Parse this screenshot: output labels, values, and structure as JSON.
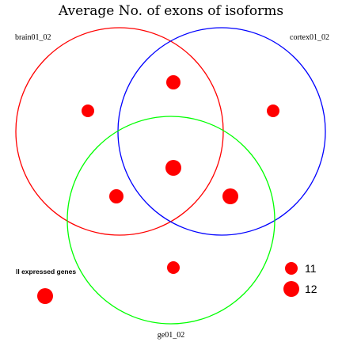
{
  "chart_data": {
    "type": "venn-bubble",
    "title": "Average No. of exons of isoforms",
    "sets": [
      {
        "name": "brain01_02",
        "color": "#ff0000"
      },
      {
        "name": "cortex01_02",
        "color": "#0000ff"
      },
      {
        "name": "ge01_02",
        "color": "#00ff00"
      }
    ],
    "regions": [
      {
        "sets": [
          "brain01_02"
        ],
        "value": 11
      },
      {
        "sets": [
          "cortex01_02"
        ],
        "value": 11
      },
      {
        "sets": [
          "brain01_02",
          "cortex01_02"
        ],
        "value": 11.5
      },
      {
        "sets": [
          "brain01_02",
          "cortex01_02",
          "ge01_02"
        ],
        "value": 12
      },
      {
        "sets": [
          "brain01_02",
          "ge01_02"
        ],
        "value": 11.5
      },
      {
        "sets": [
          "cortex01_02",
          "ge01_02"
        ],
        "value": 12
      },
      {
        "sets": [
          "ge01_02"
        ],
        "value": 11
      }
    ],
    "other": {
      "label": "ll expressed genes",
      "value": 12
    },
    "marker_color": "#ff0000",
    "legend": {
      "position": "bottom-right",
      "entries": [
        11,
        12
      ]
    }
  }
}
